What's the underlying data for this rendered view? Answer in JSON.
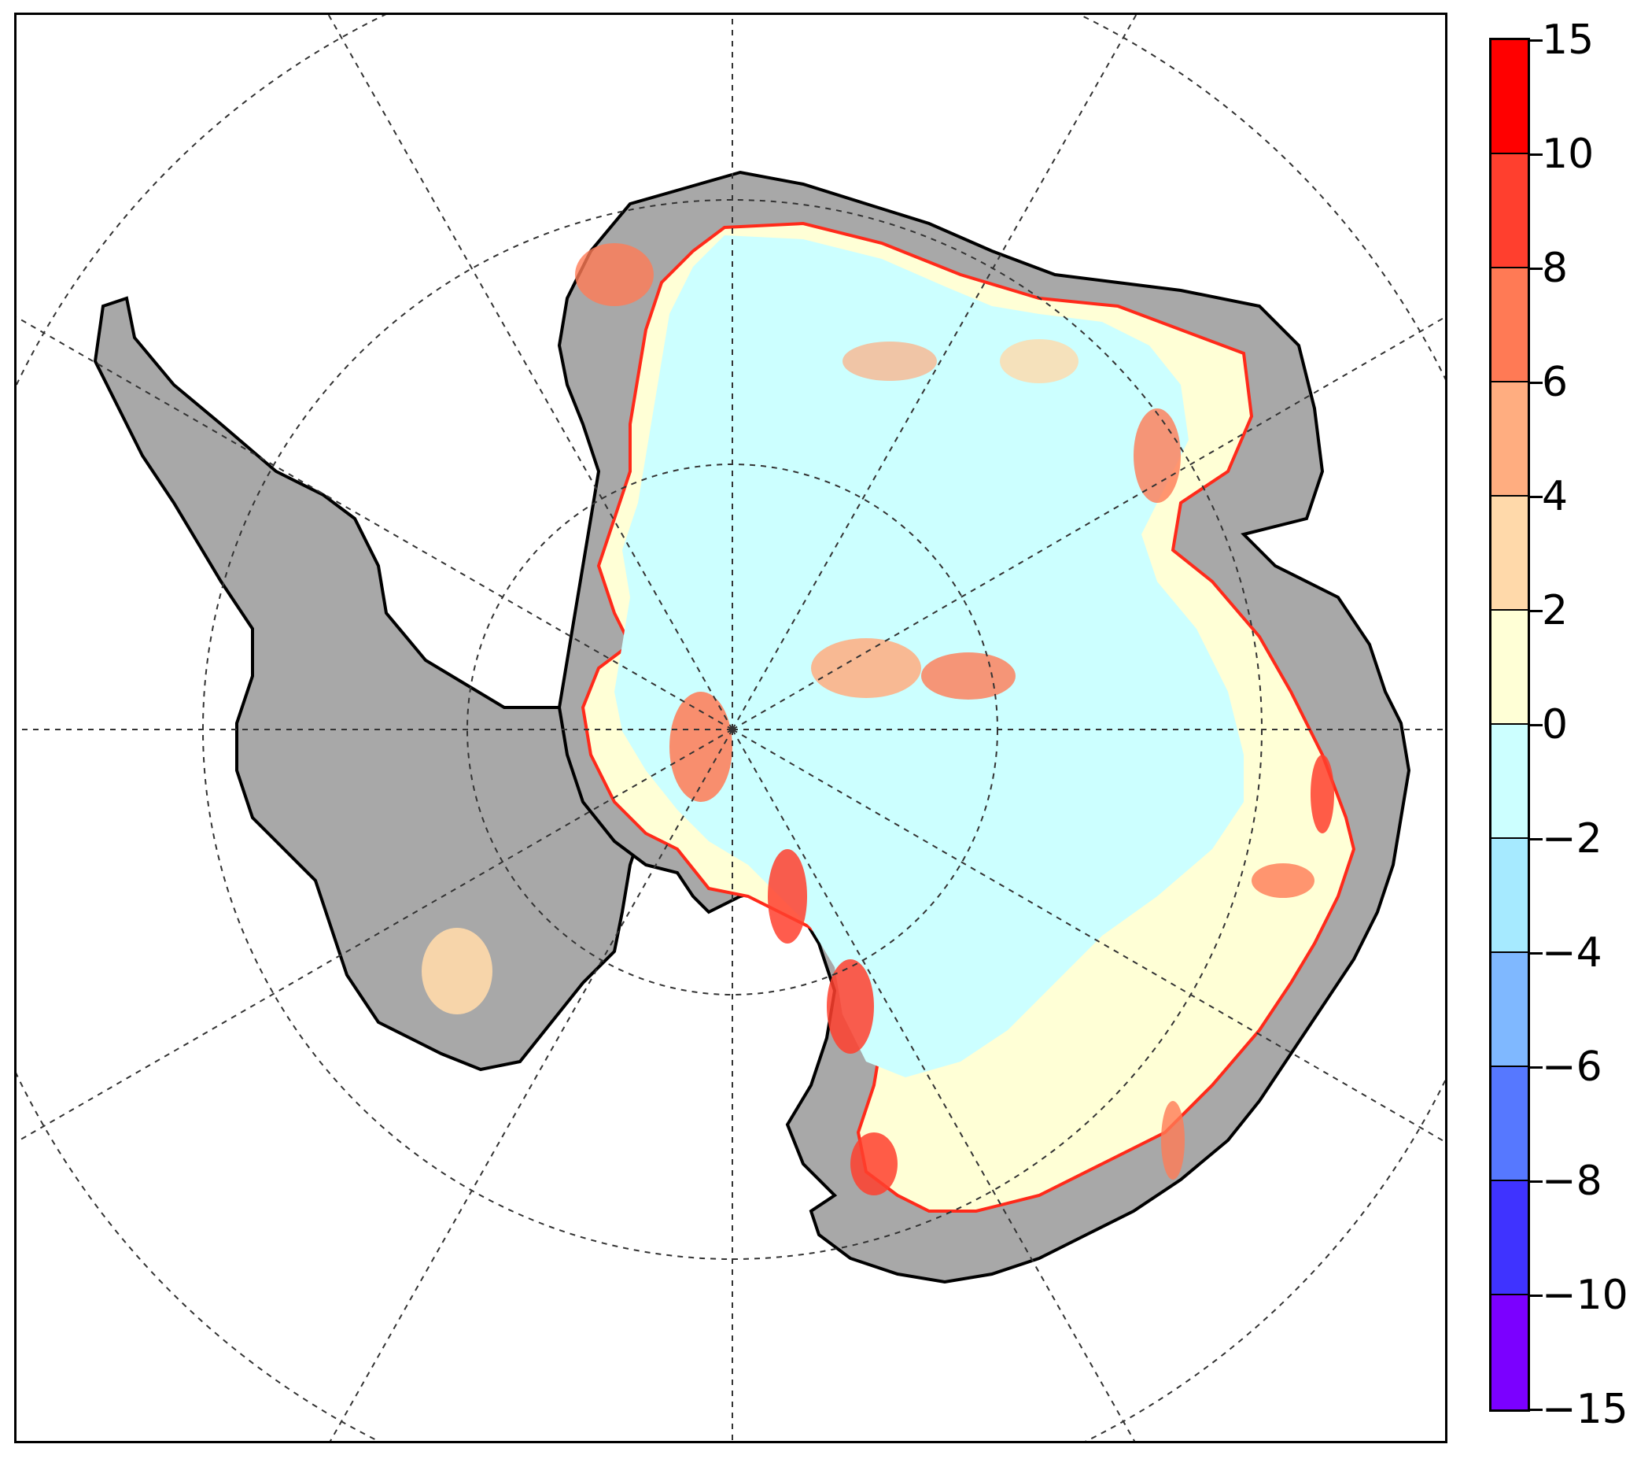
{
  "map": {
    "projection": "south-polar-stereographic",
    "graticule": "dashed",
    "land_colors": {
      "ice_shelf_grey": "#a8a8a8",
      "coastline": "#000000"
    }
  },
  "colorbar": {
    "levels": [
      "15",
      "10",
      "8",
      "6",
      "4",
      "2",
      "0",
      "−2",
      "−4",
      "−6",
      "−8",
      "−10",
      "−15"
    ],
    "colors": [
      "#ff0000",
      "#ff3f2e",
      "#ff7a55",
      "#ffad80",
      "#ffd9aa",
      "#ffffd6",
      "#ccffff",
      "#a6eaff",
      "#7fb8ff",
      "#5678ff",
      "#3f33ff",
      "#7b00ff"
    ]
  }
}
